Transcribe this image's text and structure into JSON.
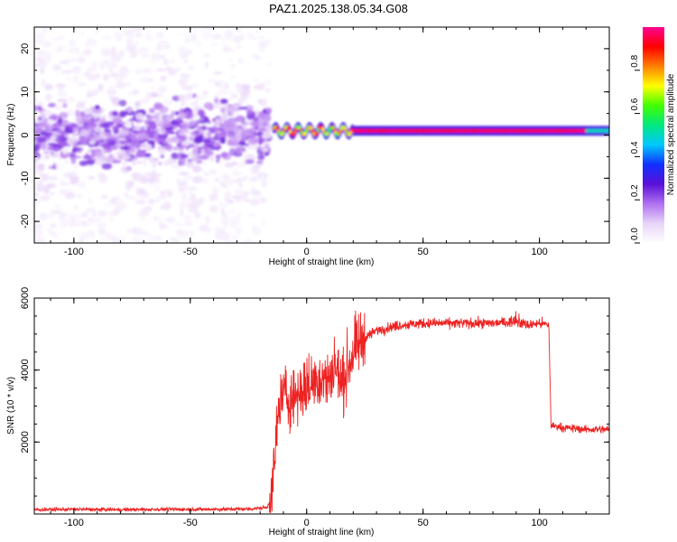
{
  "title": "PAZ1.2025.138.05.34.G08",
  "chart_data": [
    {
      "type": "heatmap",
      "xlabel": "Height of straight line (km)",
      "ylabel": "Frequency (Hz)",
      "xlim": [
        -117,
        130
      ],
      "ylim": [
        -25,
        25
      ],
      "xticks": [
        -100,
        -50,
        0,
        50,
        100
      ],
      "yticks": [
        -20,
        -10,
        0,
        10,
        20
      ],
      "colorbar": {
        "label": "Normalized spectral amplitude",
        "range": [
          0,
          1
        ],
        "ticks": [
          "0.0",
          "0.2",
          "0.4",
          "0.6",
          "0.8"
        ],
        "colors": [
          "#ffffff",
          "#e8d4f8",
          "#b070f0",
          "#5a10d8",
          "#1030ff",
          "#00c8ff",
          "#00e880",
          "#40ff00",
          "#ffff00",
          "#ff8000",
          "#ff0000",
          "#ff0090"
        ]
      },
      "noise_region": {
        "x_range": [
          -117,
          -16
        ],
        "freq_spread_hz": [
          -25,
          25
        ]
      },
      "signal_line": {
        "x_range": [
          -14,
          130
        ],
        "freq_hz": 1.0
      }
    },
    {
      "type": "line",
      "xlabel": "Height of straight line (km)",
      "ylabel": "SNR (10 * v/v)",
      "xlim": [
        -117,
        130
      ],
      "ylim": [
        0,
        6000
      ],
      "xticks": [
        -100,
        -50,
        0,
        50,
        100
      ],
      "yticks": [
        2000,
        4000,
        6000
      ],
      "color": "#ee2222",
      "x": [
        -117,
        -100,
        -80,
        -60,
        -40,
        -25,
        -17,
        -15,
        -12,
        -10,
        -8,
        -5,
        0,
        5,
        10,
        12,
        15,
        20,
        25,
        30,
        40,
        50,
        60,
        70,
        80,
        90,
        95,
        100,
        104,
        105,
        107,
        110,
        120,
        130
      ],
      "values": [
        120,
        130,
        120,
        130,
        130,
        140,
        180,
        500,
        2900,
        3400,
        3200,
        3300,
        3500,
        3800,
        3700,
        4200,
        3600,
        4500,
        4900,
        5100,
        5250,
        5300,
        5300,
        5300,
        5300,
        5350,
        5250,
        5300,
        5250,
        2450,
        2450,
        2400,
        2350,
        2350
      ]
    }
  ]
}
